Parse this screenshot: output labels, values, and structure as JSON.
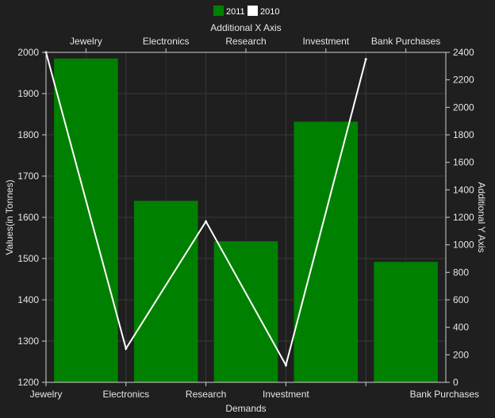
{
  "chart_data": {
    "type": "bar",
    "categories": [
      "Jewelry",
      "Electronics",
      "Research",
      "Investment",
      "Bank Purchases"
    ],
    "legend": [
      {
        "name": "2011",
        "color": "#008000"
      },
      {
        "name": "2010",
        "color": "#ffffff"
      }
    ],
    "series": [
      {
        "name": "2011",
        "type": "bar",
        "axis": "primary",
        "color": "#008000",
        "values": [
          1985,
          1640,
          1542,
          1832,
          1492
        ]
      },
      {
        "name": "2010",
        "type": "line",
        "axis": "secondary",
        "color": "#ffffff",
        "values": [
          2400,
          245,
          1170,
          125,
          2350
        ]
      }
    ],
    "xlabel": "Demands",
    "x2label": "Additional X Axis",
    "ylabel": "Values(in Tonnes)",
    "y2label": "Additional Y Axis",
    "ylim": [
      1200,
      2000
    ],
    "yticks": [
      1200,
      1300,
      1400,
      1500,
      1600,
      1700,
      1800,
      1900,
      2000
    ],
    "y2lim": [
      0,
      2400
    ],
    "y2ticks": [
      0,
      200,
      400,
      600,
      800,
      1000,
      1200,
      1400,
      1600,
      1800,
      2000,
      2200,
      2400
    ],
    "grid": true,
    "legend_position": "top-center"
  }
}
